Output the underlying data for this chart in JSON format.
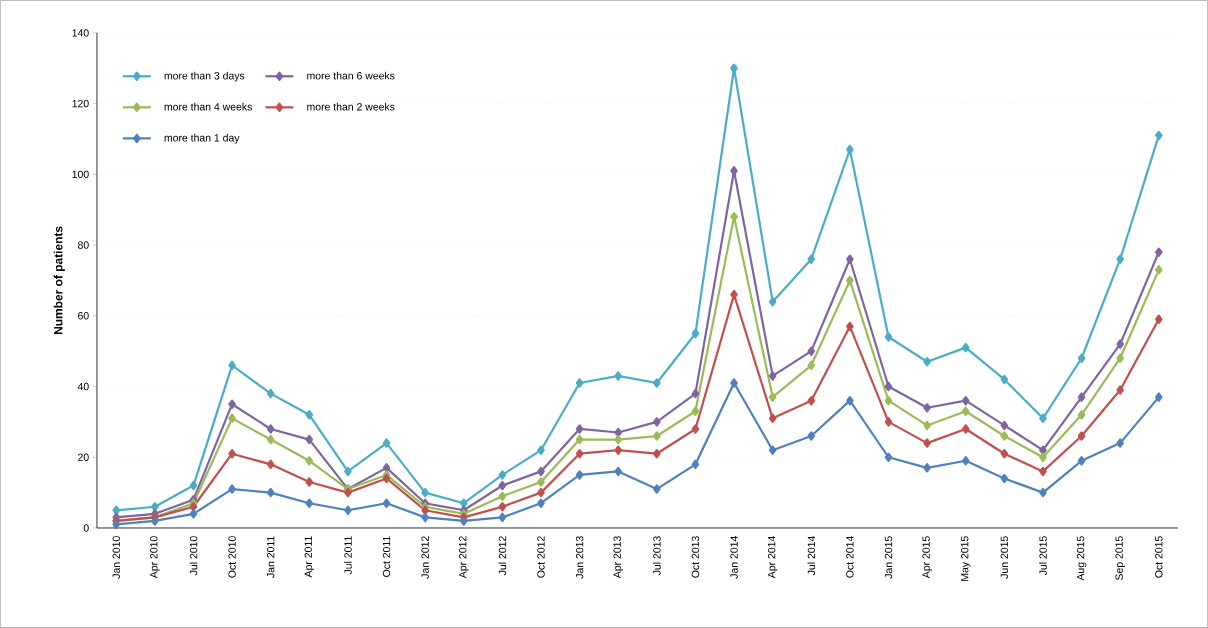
{
  "chart_data": {
    "type": "line",
    "ylabel": "Number of patients",
    "categories": [
      "Jan 2010",
      "Apr 2010",
      "Jul 2010",
      "Oct 2010",
      "Jan 2011",
      "Apr 2011",
      "Jul 2011",
      "Oct 2011",
      "Jan 2012",
      "Apr 2012",
      "Jul 2012",
      "Oct 2012",
      "Jan 2013",
      "Apr 2013",
      "Jul 2013",
      "Oct 2013",
      "Jan 2014",
      "Apr 2014",
      "Jul 2014",
      "Oct 2014",
      "Jan 2015",
      "Apr 2015",
      "May 2015",
      "Jun 2015",
      "Jul 2015",
      "Aug 2015",
      "Sep 2015",
      "Oct 2015"
    ],
    "series": [
      {
        "name": "more than 3 days",
        "color": "#4bacc6",
        "values": [
          5,
          6,
          12,
          46,
          38,
          32,
          16,
          24,
          10,
          7,
          15,
          22,
          41,
          43,
          41,
          55,
          130,
          64,
          76,
          107,
          54,
          47,
          51,
          42,
          31,
          48,
          76,
          111
        ]
      },
      {
        "name": "more than 6 weeks",
        "color": "#8064a2",
        "values": [
          3,
          4,
          8,
          35,
          28,
          25,
          11,
          17,
          7,
          5,
          12,
          16,
          28,
          27,
          30,
          38,
          101,
          43,
          50,
          76,
          40,
          34,
          36,
          29,
          22,
          37,
          52,
          78
        ]
      },
      {
        "name": "more than 4 weeks",
        "color": "#9bbb59",
        "values": [
          2,
          3,
          7,
          31,
          25,
          19,
          11,
          15,
          6,
          4,
          9,
          13,
          25,
          25,
          26,
          33,
          88,
          37,
          46,
          70,
          36,
          29,
          33,
          26,
          20,
          32,
          48,
          73
        ]
      },
      {
        "name": "more than 2 weeks",
        "color": "#c0504d",
        "values": [
          2,
          3,
          6,
          21,
          18,
          13,
          10,
          14,
          5,
          3,
          6,
          10,
          21,
          22,
          21,
          28,
          66,
          31,
          36,
          57,
          30,
          24,
          28,
          21,
          16,
          26,
          39,
          59
        ]
      },
      {
        "name": "more than 1 day",
        "color": "#4f81bd",
        "values": [
          1,
          2,
          4,
          11,
          10,
          7,
          5,
          7,
          3,
          2,
          3,
          7,
          15,
          16,
          11,
          18,
          41,
          22,
          26,
          36,
          20,
          17,
          19,
          14,
          10,
          19,
          24,
          37
        ]
      }
    ],
    "ylim": [
      0,
      140
    ],
    "yticks": [
      0,
      20,
      40,
      60,
      80,
      100,
      120,
      140
    ],
    "grid": "y",
    "legend": "top left",
    "marker": "diamond",
    "line_style": "solid"
  }
}
